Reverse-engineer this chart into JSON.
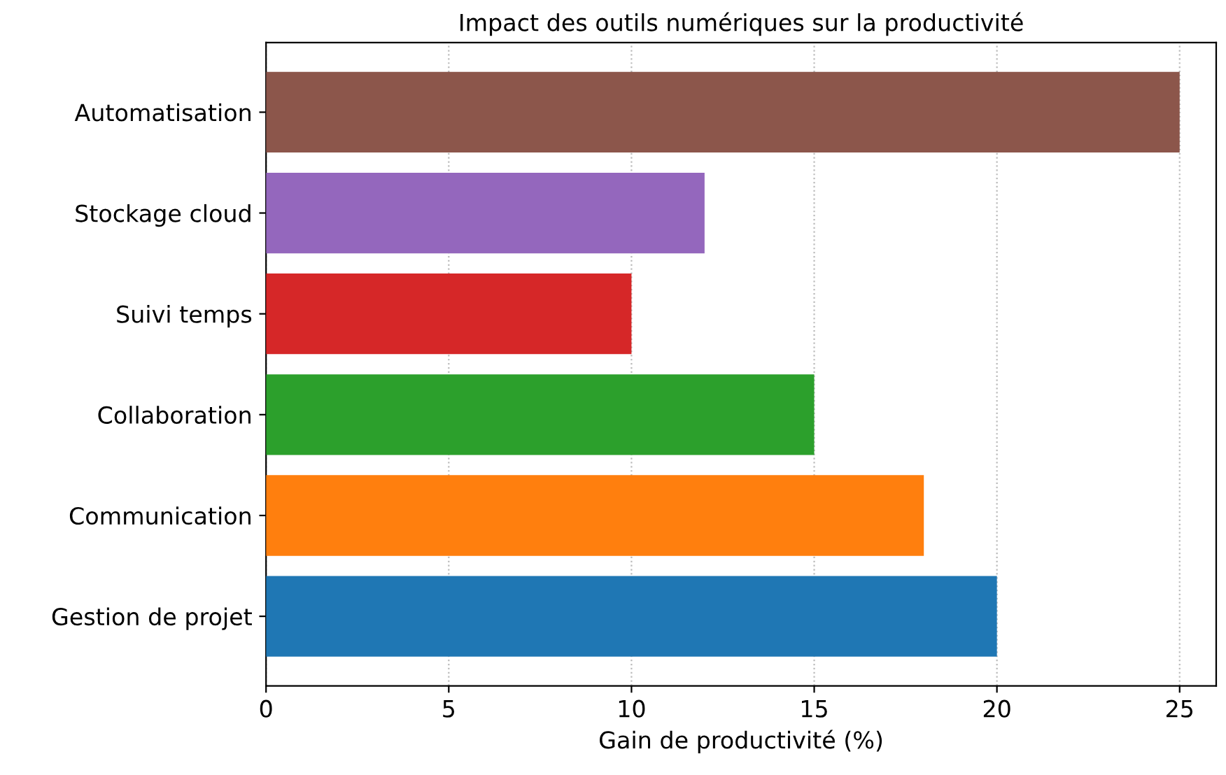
{
  "chart_data": {
    "type": "bar",
    "orientation": "horizontal",
    "title": "Impact des outils numériques sur la productivité",
    "xlabel": "Gain de productivité (%)",
    "categories": [
      "Automatisation",
      "Stockage cloud",
      "Suivi temps",
      "Collaboration",
      "Communication",
      "Gestion de projet"
    ],
    "values": [
      25,
      12,
      10,
      15,
      18,
      20
    ],
    "colors": [
      "#8c564b",
      "#9467bd",
      "#d62728",
      "#2ca02c",
      "#ff7f0e",
      "#1f77b4"
    ],
    "xlim": [
      0,
      26
    ],
    "xticks": [
      0,
      5,
      10,
      15,
      20,
      25
    ],
    "grid": "x"
  }
}
